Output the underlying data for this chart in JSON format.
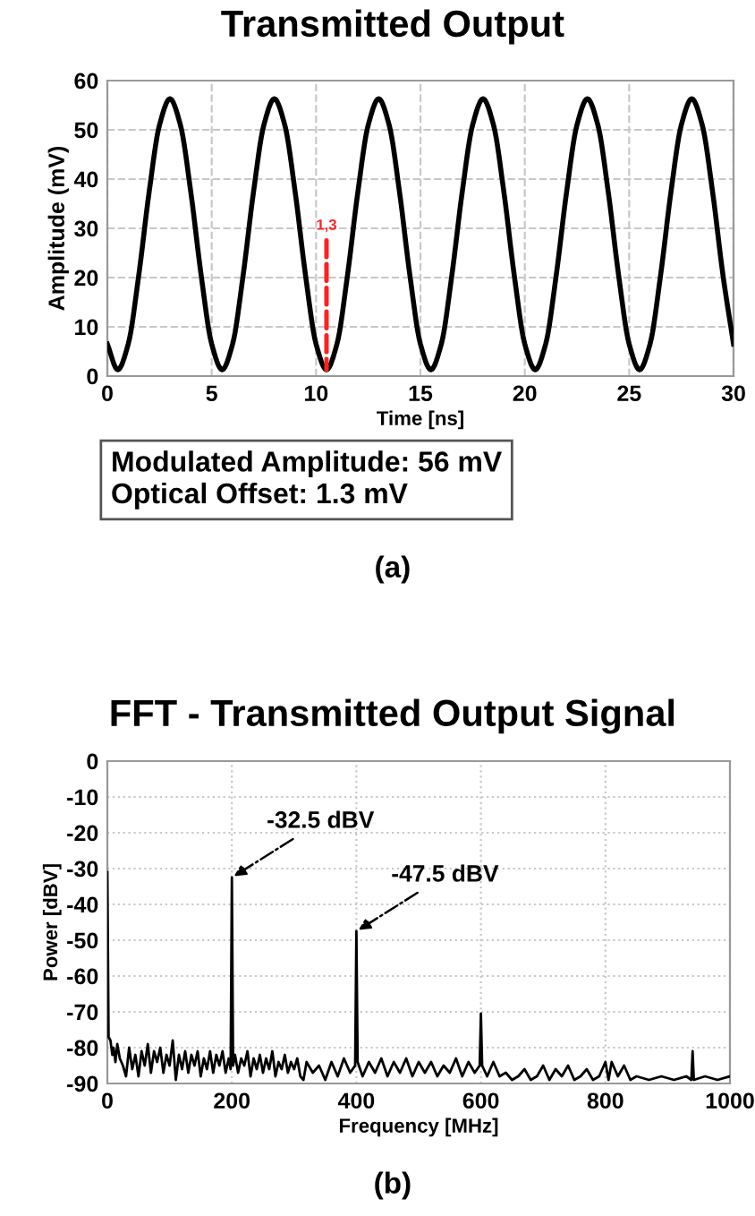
{
  "chart_data": [
    {
      "type": "line",
      "title": "Transmitted Output",
      "xlabel": "Time [ns]",
      "ylabel": "Amplitude (mV)",
      "x": [
        0,
        0.5,
        1,
        1.5,
        2,
        2.5,
        3,
        3.5,
        4,
        4.5,
        5,
        5.5,
        6,
        6.5,
        7,
        7.5,
        8,
        8.5,
        9,
        9.5,
        10,
        10.5,
        11,
        11.5,
        12,
        12.5,
        13,
        13.5,
        14,
        14.5,
        15,
        15.5,
        16,
        16.5,
        17,
        17.5,
        18,
        18.5,
        19,
        19.5,
        20,
        20.5,
        21,
        21.5,
        22,
        22.5,
        23,
        23.5,
        24,
        24.5,
        25,
        25.5,
        26,
        26.5,
        27,
        27.5,
        28,
        28.5,
        29,
        29.5,
        30
      ],
      "series": [
        {
          "color": "#000000",
          "values": [
            6.5,
            1.3,
            6.5,
            20.3,
            37.3,
            51.0,
            56.3,
            51.0,
            37.3,
            20.3,
            6.5,
            1.3,
            6.5,
            20.3,
            37.3,
            51.0,
            56.3,
            51.0,
            37.3,
            20.3,
            6.5,
            1.3,
            6.5,
            20.3,
            37.3,
            51.0,
            56.3,
            51.0,
            37.3,
            20.3,
            6.5,
            1.3,
            6.5,
            20.3,
            37.3,
            51.0,
            56.3,
            51.0,
            37.3,
            20.3,
            6.5,
            1.3,
            6.5,
            20.3,
            37.3,
            51.0,
            56.3,
            51.0,
            37.3,
            20.3,
            6.5,
            1.3,
            6.5,
            20.3,
            37.3,
            51.0,
            56.3,
            51.0,
            37.3,
            20.3,
            6.5
          ]
        }
      ],
      "xlim": [
        0,
        30
      ],
      "xticks": [
        0,
        5,
        10,
        15,
        20,
        25,
        30
      ],
      "ylim": [
        0,
        60
      ],
      "yticks": [
        0,
        10,
        20,
        30,
        40,
        50,
        60
      ],
      "grid": true,
      "line_style": "solid",
      "annotations": [
        {
          "text": "1,3",
          "x": 10.5,
          "y": 1.3
        },
        "Modulated Amplitude: 56 mV",
        "Optical Offset: 1.3 mV",
        "(a)"
      ]
    },
    {
      "type": "line",
      "title": "FFT - Transmitted Output Signal",
      "xlabel": "Frequency [MHz]",
      "ylabel": "Power [dBV]",
      "series": [
        {
          "color": "#000000",
          "x": [
            0,
            2,
            5,
            8,
            10,
            13,
            16,
            20,
            25,
            30,
            35,
            40,
            45,
            50,
            55,
            60,
            65,
            70,
            75,
            80,
            85,
            90,
            95,
            100,
            105,
            110,
            115,
            120,
            125,
            130,
            135,
            140,
            145,
            150,
            155,
            160,
            165,
            170,
            175,
            180,
            185,
            190,
            195,
            198,
            200,
            202,
            205,
            210,
            215,
            220,
            225,
            230,
            235,
            240,
            245,
            250,
            255,
            260,
            265,
            270,
            275,
            280,
            285,
            290,
            295,
            300,
            305,
            310,
            315,
            320,
            330,
            340,
            350,
            360,
            370,
            380,
            390,
            398,
            400,
            402,
            410,
            420,
            430,
            440,
            450,
            460,
            470,
            480,
            490,
            500,
            510,
            520,
            530,
            540,
            550,
            560,
            570,
            580,
            590,
            598,
            600,
            602,
            610,
            620,
            630,
            640,
            650,
            660,
            670,
            680,
            690,
            700,
            710,
            720,
            730,
            740,
            750,
            760,
            770,
            780,
            790,
            800,
            805,
            810,
            820,
            830,
            840,
            850,
            870,
            890,
            910,
            930,
            938,
            940,
            942,
            960,
            980,
            1000
          ],
          "values": [
            -31,
            -77,
            -78,
            -82,
            -80,
            -84,
            -79,
            -83,
            -85,
            -88,
            -80,
            -86,
            -82,
            -88,
            -81,
            -85,
            -79,
            -87,
            -81,
            -84,
            -80,
            -87,
            -82,
            -85,
            -78,
            -89,
            -82,
            -86,
            -81,
            -87,
            -82,
            -85,
            -81,
            -88,
            -83,
            -86,
            -81,
            -87,
            -82,
            -85,
            -81,
            -87,
            -83,
            -86,
            -32.5,
            -85,
            -82,
            -87,
            -83,
            -85,
            -81,
            -88,
            -83,
            -86,
            -82,
            -87,
            -83,
            -86,
            -81,
            -88,
            -84,
            -86,
            -82,
            -87,
            -84,
            -86,
            -83,
            -88,
            -89,
            -84,
            -87,
            -85,
            -89,
            -84,
            -88,
            -83,
            -87,
            -85,
            -47.5,
            -84,
            -88,
            -84,
            -87,
            -83,
            -88,
            -84,
            -87,
            -83,
            -88,
            -84,
            -87,
            -84,
            -88,
            -85,
            -87,
            -83,
            -88,
            -84,
            -87,
            -85,
            -70.5,
            -85,
            -88,
            -84,
            -88,
            -87,
            -89,
            -88,
            -86,
            -89,
            -88,
            -85,
            -89,
            -86,
            -88,
            -85,
            -89,
            -88,
            -86,
            -89,
            -88,
            -84,
            -89,
            -84,
            -88,
            -85,
            -89,
            -88,
            -89,
            -88,
            -89,
            -88,
            -89,
            -81,
            -89,
            -88,
            -89,
            -88
          ]
        }
      ],
      "xlim": [
        0,
        1000
      ],
      "xticks": [
        0,
        200,
        400,
        600,
        800,
        1000
      ],
      "ylim": [
        -90,
        0
      ],
      "yticks": [
        -90,
        -80,
        -70,
        -60,
        -50,
        -40,
        -30,
        -20,
        -10,
        0
      ],
      "grid": true,
      "line_style": "solid",
      "annotations": [
        {
          "text": "-32.5 dBV",
          "x": 200,
          "y": -32.5
        },
        {
          "text": "-47.5 dBV",
          "x": 400,
          "y": -47.5
        },
        "(b)"
      ]
    }
  ]
}
